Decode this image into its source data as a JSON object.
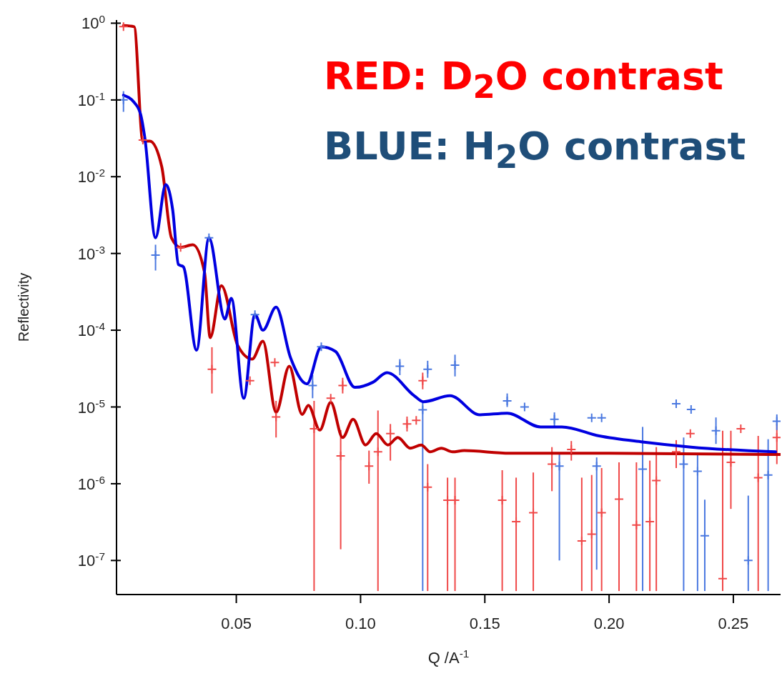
{
  "chart_data": {
    "type": "scatter",
    "xlabel": "Q /A$^{-1}$",
    "ylabel": "Reflectivity",
    "annotations": [
      "RED: D$_{2}$O contrast",
      "BLUE: H$_{2}$O contrast"
    ],
    "xlim": [
      0.0018,
      0.269
    ],
    "xticks": [
      {
        "value": 0.05,
        "label": "0.05"
      },
      {
        "value": 0.1,
        "label": "0.10"
      },
      {
        "value": 0.15,
        "label": "0.15"
      },
      {
        "value": 0.2,
        "label": "0.20"
      },
      {
        "value": 0.25,
        "label": "0.25"
      }
    ],
    "ylim": [
      3.6e-08,
      1.1
    ],
    "yticks": [
      {
        "value": 1,
        "label": "10$^{0}$"
      },
      {
        "value": 0.1,
        "label": "10$^{-1}$"
      },
      {
        "value": 0.01,
        "label": "10$^{-2}$"
      },
      {
        "value": 0.001,
        "label": "10$^{-3}$"
      },
      {
        "value": 0.0001,
        "label": "10$^{-4}$"
      },
      {
        "value": 1e-05,
        "label": "10$^{-5}$"
      },
      {
        "value": 1e-06,
        "label": "10$^{-6}$"
      },
      {
        "value": 1e-07,
        "label": "10$^{-7}$"
      }
    ],
    "log": "y",
    "grid": false,
    "line_style": "solid",
    "series": [
      {
        "marker": "cross",
        "color": "#f04848",
        "x": [
          0.0046,
          0.0124,
          0.0276,
          0.0402,
          0.0555,
          0.0655,
          0.066,
          0.0813,
          0.088,
          0.0928,
          0.092,
          0.1034,
          0.107,
          0.112,
          0.1187,
          0.1224,
          0.125,
          0.127,
          0.135,
          0.138,
          0.157,
          0.1626,
          0.1695,
          0.177,
          0.1848,
          0.189,
          0.193,
          0.197,
          0.204,
          0.211,
          0.2164,
          0.219,
          0.227,
          0.2327,
          0.2457,
          0.249,
          0.253,
          0.26,
          0.2675
        ],
        "values": [
          0.9,
          0.03,
          0.0012,
          3.1e-05,
          2.2e-05,
          3.8e-05,
          7.4e-06,
          5.2e-06,
          1.3e-05,
          1.9e-05,
          2.3e-06,
          1.7e-06,
          2.6e-06,
          4.5e-06,
          6e-06,
          6.7e-06,
          2.2e-05,
          9e-07,
          6.1e-07,
          6.1e-07,
          6.1e-07,
          3.2e-07,
          4.2e-07,
          1.8e-06,
          2.8e-06,
          1.8e-07,
          2.2e-07,
          4.2e-07,
          6.3e-07,
          2.9e-07,
          3.2e-07,
          1.1e-06,
          2.6e-06,
          4.5e-06,
          5.8e-08,
          1.9e-06,
          5.2e-06,
          1.2e-06,
          4e-06
        ],
        "errors": [
          null,
          null,
          null,
          [
            1.5e-05,
            6e-05
          ],
          null,
          null,
          [
            4e-06,
            1.2e-05
          ],
          [
            4e-08,
            1.2e-05
          ],
          null,
          [
            1.5e-05,
            2.4e-05
          ],
          [
            1.4e-07,
            5e-06
          ],
          [
            1e-06,
            2.7e-06
          ],
          [
            4e-08,
            9e-06
          ],
          [
            2e-06,
            6e-06
          ],
          [
            4.8e-06,
            7.5e-06
          ],
          null,
          [
            1.7e-05,
            2.8e-05
          ],
          [
            4e-08,
            1.8e-06
          ],
          [
            4e-08,
            1.2e-06
          ],
          [
            4e-08,
            1.2e-06
          ],
          [
            4e-08,
            1.5e-06
          ],
          [
            4e-08,
            1.2e-06
          ],
          [
            4e-08,
            1.4e-06
          ],
          [
            8e-07,
            3e-06
          ],
          [
            2e-06,
            3.6e-06
          ],
          [
            4e-08,
            1.2e-06
          ],
          [
            4e-08,
            1.3e-06
          ],
          [
            4e-08,
            1.6e-06
          ],
          [
            4e-08,
            1.9e-06
          ],
          [
            4e-08,
            1.9e-06
          ],
          [
            4e-08,
            2e-06
          ],
          [
            4e-08,
            3e-06
          ],
          [
            1.6e-06,
            3.7e-06
          ],
          null,
          [
            4e-08,
            4.9e-06
          ],
          [
            4.7e-07,
            4.9e-06
          ],
          null,
          [
            4e-08,
            4.2e-06
          ],
          [
            1.8e-06,
            6e-06
          ]
        ]
      },
      {
        "marker": "cross",
        "color": "#4a78e0",
        "x": [
          0.0046,
          0.0175,
          0.039,
          0.0575,
          0.0807,
          0.0842,
          0.1158,
          0.125,
          0.127,
          0.138,
          0.159,
          0.166,
          0.178,
          0.18,
          0.193,
          0.195,
          0.197,
          0.2135,
          0.227,
          0.23,
          0.233,
          0.2356,
          0.2385,
          0.243,
          0.256,
          0.264,
          0.2675
        ],
        "values": [
          0.1,
          0.00095,
          0.0016,
          0.00016,
          1.9e-05,
          6.1e-05,
          3.4e-05,
          9.2e-06,
          3.1e-05,
          3.5e-05,
          1.2e-05,
          1e-05,
          6.9e-06,
          1.7e-06,
          7.2e-06,
          1.7e-06,
          7.2e-06,
          1.55e-06,
          1.1e-05,
          1.8e-06,
          9.3e-06,
          1.45e-06,
          2.1e-07,
          4.9e-06,
          1e-07,
          1.3e-06,
          6.5e-06
        ],
        "errors": [
          [
            0.07,
            0.13
          ],
          [
            0.0006,
            0.0013
          ],
          null,
          null,
          [
            1.3e-05,
            2.6e-05
          ],
          null,
          [
            2.6e-05,
            4.2e-05
          ],
          [
            4e-08,
            1.2e-05
          ],
          [
            2.4e-05,
            4e-05
          ],
          [
            2.5e-05,
            4.8e-05
          ],
          [
            1e-05,
            1.5e-05
          ],
          null,
          [
            5.5e-06,
            8.5e-06
          ],
          [
            1e-07,
            2.5e-06
          ],
          null,
          [
            7.6e-08,
            2.2e-06
          ],
          null,
          [
            4e-08,
            5.5e-06
          ],
          null,
          [
            4e-08,
            4e-06
          ],
          null,
          [
            4e-08,
            2.5e-06
          ],
          [
            4e-08,
            6.2e-07
          ],
          [
            3.3e-06,
            7.3e-06
          ],
          [
            4e-08,
            7e-07
          ],
          [
            4e-08,
            3.8e-06
          ],
          [
            5e-06,
            8e-06
          ]
        ]
      },
      {
        "type": "line",
        "color": "#c00000",
        "x": [
          0.0046,
          0.0089,
          0.0124,
          0.0152,
          0.02,
          0.0239,
          0.0276,
          0.0325,
          0.0372,
          0.0395,
          0.044,
          0.0506,
          0.0564,
          0.0607,
          0.066,
          0.0713,
          0.0765,
          0.079,
          0.0836,
          0.088,
          0.0928,
          0.097,
          0.102,
          0.1063,
          0.111,
          0.115,
          0.12,
          0.1244,
          0.128,
          0.1325,
          0.137,
          0.1417,
          0.16,
          0.2,
          0.269
        ],
        "values": [
          0.93,
          0.9,
          0.029,
          0.029,
          0.0135,
          0.0016,
          0.0012,
          0.0013,
          0.00057,
          8e-05,
          0.00038,
          6.3e-05,
          4.2e-05,
          7.2e-05,
          8.5e-06,
          3.4e-05,
          8e-06,
          1.05e-05,
          5e-06,
          1.15e-05,
          4e-06,
          6.9e-06,
          3.2e-06,
          4.5e-06,
          3.2e-06,
          4e-06,
          2.9e-06,
          3.2e-06,
          2.6e-06,
          2.9e-06,
          2.6e-06,
          2.7e-06,
          2.5e-06,
          2.5e-06,
          2.4e-06
        ]
      },
      {
        "type": "line",
        "color": "#0000e0",
        "x": [
          0.0046,
          0.0089,
          0.0115,
          0.0132,
          0.0175,
          0.0216,
          0.0244,
          0.0267,
          0.0287,
          0.034,
          0.039,
          0.0454,
          0.048,
          0.053,
          0.0575,
          0.0607,
          0.066,
          0.0718,
          0.0784,
          0.0842,
          0.0899,
          0.0977,
          0.105,
          0.1106,
          0.1216,
          0.1253,
          0.136,
          0.148,
          0.159,
          0.1724,
          0.181,
          0.196,
          0.2135,
          0.233,
          0.267
        ],
        "values": [
          0.115,
          0.093,
          0.065,
          0.032,
          0.0016,
          0.0079,
          0.0037,
          0.00072,
          0.00067,
          5.5e-05,
          0.0016,
          0.00014,
          0.00026,
          1.3e-05,
          0.00016,
          0.0001,
          0.0002,
          4.4e-05,
          2e-05,
          6.1e-05,
          5.3e-05,
          1.8e-05,
          2.1e-05,
          2.8e-05,
          1.4e-05,
          1.17e-05,
          1.4e-05,
          7.9e-06,
          8.3e-06,
          5.5e-06,
          5.5e-06,
          4.2e-06,
          3.5e-06,
          3e-06,
          2.6e-06
        ]
      }
    ]
  }
}
